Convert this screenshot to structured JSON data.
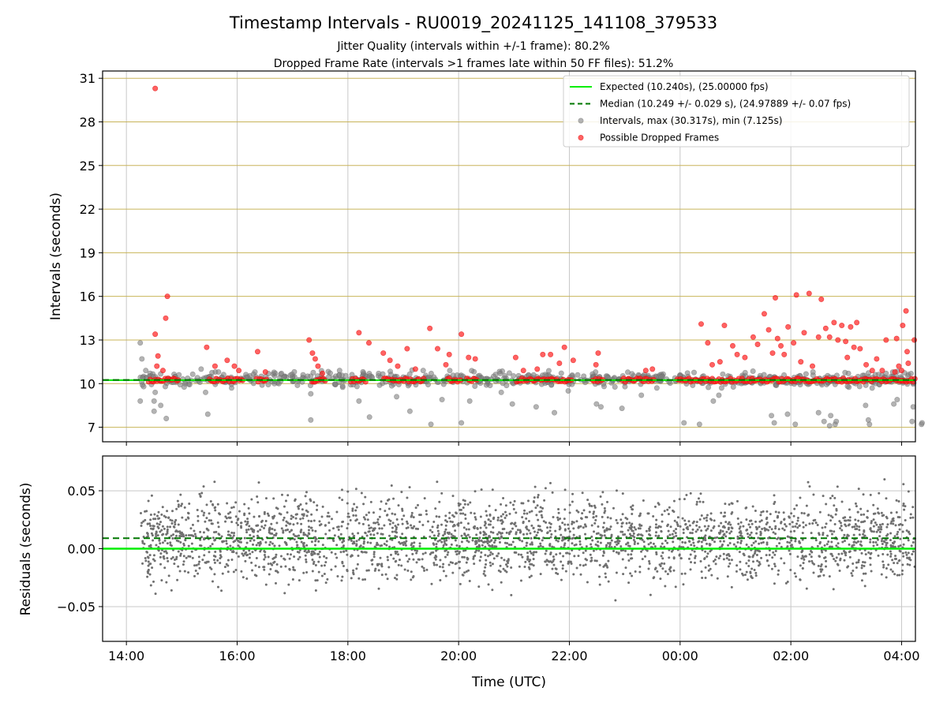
{
  "chart_data": [
    {
      "type": "scatter",
      "title": "Timestamp Intervals - RU0019_20241125_141108_379533",
      "subtitle_lines": [
        "Jitter Quality (intervals within +/-1 frame): 80.2%",
        "Dropped Frame Rate (intervals >1 frames late within 50 FF files): 51.2%"
      ],
      "xlabel": "",
      "ylabel": "Intervals (seconds)",
      "x_range_hours": [
        13.57,
        28.25
      ],
      "ylim": [
        6.0,
        31.5
      ],
      "y_ticks": [
        7,
        10,
        13,
        16,
        19,
        22,
        25,
        28,
        31
      ],
      "y_tick_labels": [
        "7",
        "10",
        "13",
        "16",
        "19",
        "22",
        "25",
        "28",
        "31"
      ],
      "horizontal_grid_color": "#c8b45a",
      "expected": 10.24,
      "median": 10.249,
      "legend": {
        "placement": "top-right",
        "entries": [
          {
            "label": "Expected (10.240s), (25.00000 fps)",
            "kind": "line",
            "color": "#00ee00"
          },
          {
            "label": "Median (10.249 +/- 0.029 s), (24.97889 +/- 0.07 fps)",
            "kind": "dashed",
            "color": "#007700"
          },
          {
            "label": "Intervals, max (30.317s), min (7.125s)",
            "kind": "dot",
            "color": "#808080"
          },
          {
            "label": "Possible Dropped Frames",
            "kind": "dot",
            "color": "#ff2020"
          }
        ]
      },
      "series": [
        {
          "name": "Possible Dropped Frames",
          "color": "#ff2020",
          "points": [
            [
              14.52,
              30.3
            ],
            [
              14.74,
              16.0
            ],
            [
              14.71,
              14.5
            ],
            [
              14.52,
              13.4
            ],
            [
              14.57,
              11.9
            ],
            [
              14.55,
              11.2
            ],
            [
              14.66,
              10.9
            ],
            [
              15.45,
              12.5
            ],
            [
              15.6,
              11.2
            ],
            [
              15.82,
              11.6
            ],
            [
              15.95,
              11.2
            ],
            [
              16.03,
              10.9
            ],
            [
              16.37,
              12.2
            ],
            [
              16.51,
              10.8
            ],
            [
              17.3,
              13.0
            ],
            [
              17.36,
              12.1
            ],
            [
              17.41,
              11.7
            ],
            [
              17.46,
              11.2
            ],
            [
              17.54,
              10.7
            ],
            [
              18.2,
              13.5
            ],
            [
              18.38,
              12.8
            ],
            [
              18.64,
              12.1
            ],
            [
              18.76,
              11.6
            ],
            [
              18.9,
              11.2
            ],
            [
              19.07,
              12.4
            ],
            [
              19.22,
              11.0
            ],
            [
              19.48,
              13.8
            ],
            [
              19.62,
              12.4
            ],
            [
              19.77,
              11.3
            ],
            [
              19.83,
              12.0
            ],
            [
              20.05,
              13.4
            ],
            [
              20.18,
              11.8
            ],
            [
              20.3,
              11.7
            ],
            [
              21.03,
              11.8
            ],
            [
              21.17,
              10.9
            ],
            [
              21.42,
              11.0
            ],
            [
              21.52,
              12.0
            ],
            [
              21.66,
              12.0
            ],
            [
              21.82,
              11.4
            ],
            [
              21.91,
              12.5
            ],
            [
              22.07,
              11.6
            ],
            [
              22.52,
              12.1
            ],
            [
              22.48,
              11.3
            ],
            [
              23.38,
              10.9
            ],
            [
              23.5,
              11.0
            ],
            [
              24.38,
              14.1
            ],
            [
              24.5,
              12.8
            ],
            [
              24.58,
              11.3
            ],
            [
              24.72,
              11.5
            ],
            [
              24.8,
              14.0
            ],
            [
              24.95,
              12.6
            ],
            [
              25.03,
              12.0
            ],
            [
              25.17,
              11.8
            ],
            [
              25.32,
              13.2
            ],
            [
              25.4,
              12.7
            ],
            [
              25.52,
              14.8
            ],
            [
              25.6,
              13.7
            ],
            [
              25.67,
              12.1
            ],
            [
              25.72,
              15.9
            ],
            [
              25.76,
              13.1
            ],
            [
              25.82,
              12.6
            ],
            [
              25.88,
              12.0
            ],
            [
              25.95,
              13.9
            ],
            [
              26.05,
              12.8
            ],
            [
              26.1,
              16.1
            ],
            [
              26.18,
              11.5
            ],
            [
              26.24,
              13.5
            ],
            [
              26.33,
              16.2
            ],
            [
              26.39,
              11.2
            ],
            [
              26.5,
              13.2
            ],
            [
              26.55,
              15.8
            ],
            [
              26.63,
              13.8
            ],
            [
              26.7,
              13.2
            ],
            [
              26.78,
              14.2
            ],
            [
              26.85,
              13.0
            ],
            [
              26.92,
              14.0
            ],
            [
              26.99,
              12.9
            ],
            [
              27.02,
              11.8
            ],
            [
              27.08,
              13.9
            ],
            [
              27.14,
              12.5
            ],
            [
              27.19,
              14.2
            ],
            [
              27.25,
              12.4
            ],
            [
              27.36,
              11.3
            ],
            [
              27.47,
              10.9
            ],
            [
              27.55,
              11.7
            ],
            [
              27.65,
              10.9
            ],
            [
              27.88,
              10.8
            ],
            [
              28.0,
              10.9
            ],
            [
              28.12,
              11.4
            ],
            [
              28.23,
              13.0
            ],
            [
              28.08,
              15.0
            ],
            [
              28.02,
              14.0
            ],
            [
              27.91,
              13.1
            ],
            [
              27.72,
              13.0
            ],
            [
              28.1,
              12.2
            ],
            [
              27.95,
              11.2
            ]
          ],
          "dense_runs_at_value": 10.24,
          "dense_runs_hours": [
            [
              14.4,
              14.95
            ],
            [
              15.5,
              16.1
            ],
            [
              16.35,
              16.55
            ],
            [
              17.35,
              17.6
            ],
            [
              18.05,
              18.35
            ],
            [
              18.65,
              19.4
            ],
            [
              19.8,
              20.05
            ],
            [
              20.15,
              20.35
            ],
            [
              21.05,
              22.05
            ],
            [
              22.42,
              22.62
            ],
            [
              22.95,
              23.55
            ],
            [
              23.95,
              28.25
            ]
          ]
        },
        {
          "name": "Intervals",
          "color": "#808080",
          "points": [
            [
              14.25,
              12.8
            ],
            [
              14.28,
              11.7
            ],
            [
              14.35,
              10.9
            ],
            [
              14.5,
              8.8
            ],
            [
              14.5,
              8.1
            ],
            [
              14.52,
              9.4
            ],
            [
              14.72,
              7.6
            ],
            [
              14.25,
              8.8
            ],
            [
              14.62,
              8.5
            ],
            [
              15.43,
              9.4
            ],
            [
              15.47,
              7.9
            ],
            [
              15.72,
              10.4
            ],
            [
              15.9,
              9.7
            ],
            [
              16.45,
              9.9
            ],
            [
              17.33,
              9.3
            ],
            [
              17.33,
              7.5
            ],
            [
              18.2,
              8.8
            ],
            [
              18.39,
              7.7
            ],
            [
              18.88,
              9.1
            ],
            [
              19.12,
              8.1
            ],
            [
              19.5,
              7.2
            ],
            [
              19.7,
              8.9
            ],
            [
              20.05,
              7.3
            ],
            [
              20.2,
              8.8
            ],
            [
              20.77,
              9.4
            ],
            [
              20.97,
              8.6
            ],
            [
              21.4,
              8.4
            ],
            [
              21.73,
              8.0
            ],
            [
              21.98,
              9.5
            ],
            [
              22.49,
              8.6
            ],
            [
              22.57,
              8.4
            ],
            [
              22.95,
              8.3
            ],
            [
              23.3,
              9.2
            ],
            [
              23.58,
              9.7
            ],
            [
              24.07,
              7.3
            ],
            [
              24.35,
              7.2
            ],
            [
              24.6,
              8.8
            ],
            [
              24.7,
              9.2
            ],
            [
              25.65,
              7.8
            ],
            [
              25.7,
              7.3
            ],
            [
              25.94,
              7.9
            ],
            [
              26.08,
              7.2
            ],
            [
              26.5,
              8.0
            ],
            [
              26.6,
              7.4
            ],
            [
              26.7,
              7.1
            ],
            [
              26.72,
              7.8
            ],
            [
              26.8,
              7.2
            ],
            [
              26.82,
              7.4
            ],
            [
              27.35,
              8.5
            ],
            [
              27.86,
              8.6
            ],
            [
              27.92,
              8.9
            ],
            [
              28.19,
              7.4
            ],
            [
              28.21,
              8.4
            ],
            [
              28.36,
              7.2
            ],
            [
              27.4,
              7.5
            ],
            [
              27.42,
              7.2
            ],
            [
              28.37,
              7.3
            ],
            [
              15.35,
              11.0
            ],
            [
              16.8,
              10.7
            ],
            [
              17.85,
              10.9
            ],
            [
              19.36,
              10.9
            ],
            [
              20.75,
              10.7
            ],
            [
              22.15,
              10.6
            ],
            [
              23.25,
              10.6
            ],
            [
              24.0,
              10.6
            ],
            [
              26.4,
              10.8
            ],
            [
              27.72,
              10.7
            ]
          ],
          "dense_band": [
            9.7,
            10.9
          ]
        }
      ]
    },
    {
      "type": "scatter",
      "title": "",
      "xlabel": "Time (UTC)",
      "ylabel": "Residuals (seconds)",
      "x_range_hours": [
        13.57,
        28.25
      ],
      "ylim": [
        -0.08,
        0.08
      ],
      "y_ticks": [
        -0.05,
        0.0,
        0.05
      ],
      "y_tick_labels": [
        "−0.05",
        "0.00",
        "0.05"
      ],
      "x_ticks_hours": [
        14,
        16,
        18,
        20,
        22,
        24,
        26,
        28
      ],
      "x_tick_labels": [
        "14:00",
        "16:00",
        "18:00",
        "20:00",
        "22:00",
        "00:00",
        "02:00",
        "04:00"
      ],
      "expected": 0.0,
      "median": 0.009,
      "series": [
        {
          "name": "Residuals",
          "color": "#707070",
          "points_summary": {
            "start": 14.25,
            "end": 28.25,
            "count": 2800,
            "center": 0.009,
            "spread": 0.025
          }
        }
      ]
    }
  ],
  "colors": {
    "expected_line": "#00ee00",
    "median_line": "#007700",
    "interval_dot": "#808080",
    "dropped_dot": "#ff2020",
    "residual_dot": "#707070",
    "axis_grid": "#c8c8c8"
  }
}
